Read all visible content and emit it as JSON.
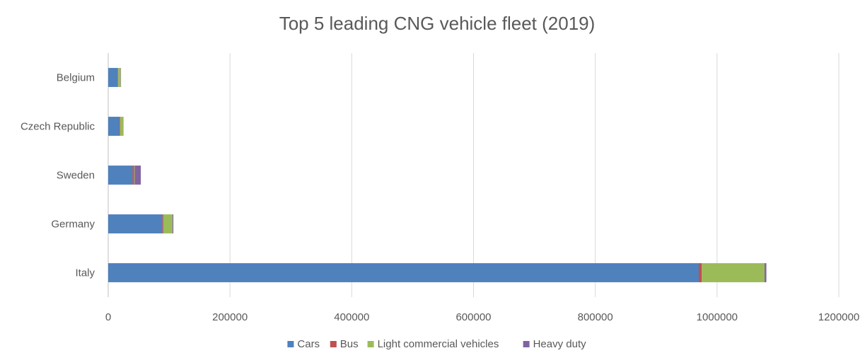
{
  "chart_data": {
    "type": "bar",
    "orientation": "horizontal",
    "stacked": true,
    "title": "Top 5 leading CNG vehicle fleet (2019)",
    "categories": [
      "Belgium",
      "Czech Republic",
      "Sweden",
      "Germany",
      "Italy"
    ],
    "series": [
      {
        "name": "Cars",
        "color": "#4f81bd",
        "values": [
          16000,
          18000,
          40000,
          89000,
          970000
        ]
      },
      {
        "name": "Bus",
        "color": "#c0504d",
        "values": [
          500,
          1500,
          2500,
          1500,
          5000
        ]
      },
      {
        "name": "Light commercial vehicles",
        "color": "#9bbb59",
        "values": [
          4000,
          5000,
          1000,
          15000,
          103000
        ]
      },
      {
        "name": "Heavy duty",
        "color": "#8064a2",
        "values": [
          500,
          500,
          10000,
          1500,
          3000
        ]
      }
    ],
    "xlim": [
      0,
      1200000
    ],
    "xticks": [
      "0",
      "200000",
      "400000",
      "600000",
      "800000",
      "1000000",
      "1200000"
    ],
    "grid": true,
    "legend_position": "bottom"
  }
}
